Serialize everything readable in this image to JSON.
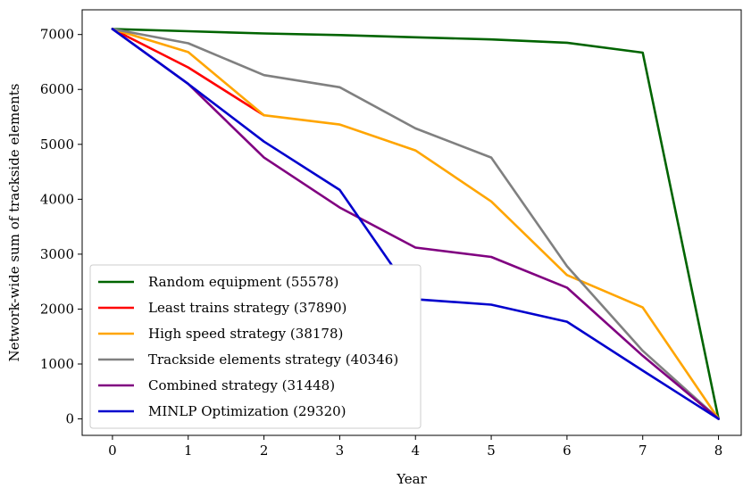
{
  "chart_data": {
    "type": "line",
    "title": "",
    "xlabel": "Year",
    "ylabel": "Network-wide sum of trackside elements",
    "xlim": [
      -0.4,
      8.3
    ],
    "ylim": [
      -300,
      7450
    ],
    "x_ticks": [
      0,
      1,
      2,
      3,
      4,
      5,
      6,
      7,
      8
    ],
    "y_ticks": [
      0,
      1000,
      2000,
      3000,
      4000,
      5000,
      6000,
      7000
    ],
    "grid": false,
    "legend_position": "lower-left",
    "series": [
      {
        "name": "Random equipment (55578)",
        "color": "#006400",
        "x": [
          0,
          1,
          2,
          3,
          4,
          5,
          6,
          7,
          8
        ],
        "values": [
          7100,
          7060,
          7020,
          6990,
          6950,
          6910,
          6850,
          6670,
          0
        ]
      },
      {
        "name": "Least trains strategy (37890)",
        "color": "#ff0000",
        "x": [
          0,
          1,
          2
        ],
        "values": [
          7100,
          6400,
          5530
        ]
      },
      {
        "name": "High speed strategy (38178)",
        "color": "#ffa500",
        "x": [
          0,
          1,
          2,
          3,
          4,
          5,
          6,
          7,
          8
        ],
        "values": [
          7100,
          6680,
          5530,
          5360,
          4890,
          3960,
          2620,
          2030,
          0
        ]
      },
      {
        "name": "Trackside elements strategy (40346)",
        "color": "#808080",
        "x": [
          0,
          1,
          2,
          3,
          4,
          5,
          6,
          7,
          8
        ],
        "values": [
          7100,
          6840,
          6260,
          6040,
          5290,
          4760,
          2780,
          1240,
          0
        ]
      },
      {
        "name": "Combined strategy (31448)",
        "color": "#800080",
        "x": [
          0,
          1,
          2,
          3,
          4,
          5,
          6,
          7,
          8
        ],
        "values": [
          7100,
          6100,
          4760,
          3850,
          3120,
          2950,
          2390,
          1150,
          0
        ]
      },
      {
        "name": "MINLP Optimization (29320)",
        "color": "#0000cd",
        "x": [
          0,
          1,
          2,
          3,
          4,
          5,
          6,
          7,
          8
        ],
        "values": [
          7100,
          6100,
          5050,
          4170,
          2180,
          2080,
          1770,
          880,
          0
        ]
      }
    ]
  }
}
